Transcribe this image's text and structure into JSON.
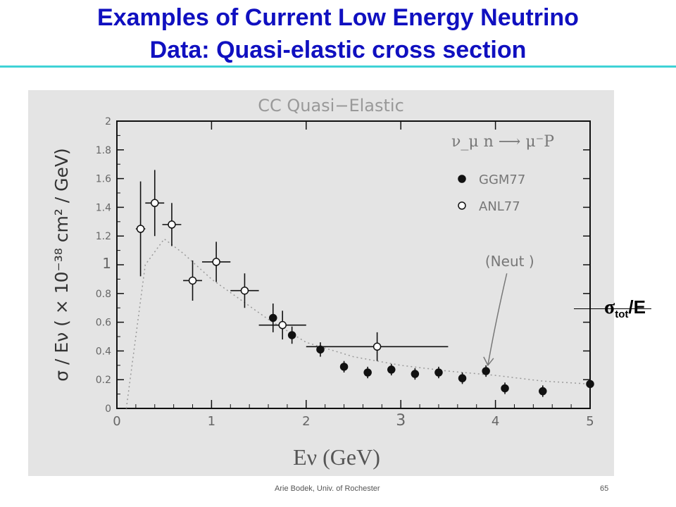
{
  "slide": {
    "title_line1": "Examples of Current Low Energy Neutrino",
    "title_line2": "Data: Quasi-elastic cross section",
    "footer_author": "Arie Bodek,  Univ. of Rochester",
    "footer_page": "65",
    "side_label_sigma": "σ",
    "side_label_sub": "tot",
    "side_label_rest": "/E"
  },
  "chart_data": {
    "type": "scatter",
    "title": "CC Quasi−Elastic",
    "reaction": "ν_μ n ⟶ μ⁻P",
    "xlabel": "Eν (GeV)",
    "ylabel": "σ / Eν ( × 10⁻³⁸ cm² / GeV)",
    "xlim": [
      0,
      5
    ],
    "ylim": [
      0,
      2
    ],
    "x_ticks": [
      0,
      1,
      2,
      3,
      4,
      5
    ],
    "y_ticks": [
      0,
      0.2,
      0.4,
      0.6,
      0.8,
      1,
      1.2,
      1.4,
      1.6,
      1.8,
      2
    ],
    "y_tick_labels": [
      "0",
      "0.2",
      "0.4",
      "0.6",
      "0.8",
      "1",
      "1.2",
      "1.4",
      "1.6",
      "1.8",
      "2"
    ],
    "grid": false,
    "legend_position": "top-right",
    "series": [
      {
        "name": "GGM77",
        "marker": "filled-circle",
        "points": [
          {
            "x": 1.65,
            "y": 0.63,
            "xerr": 0.0,
            "yerr": 0.1
          },
          {
            "x": 1.85,
            "y": 0.51,
            "xerr": 0.0,
            "yerr": 0.06
          },
          {
            "x": 2.15,
            "y": 0.41,
            "xerr": 0.0,
            "yerr": 0.05
          },
          {
            "x": 2.4,
            "y": 0.29,
            "xerr": 0.0,
            "yerr": 0.04
          },
          {
            "x": 2.65,
            "y": 0.25,
            "xerr": 0.0,
            "yerr": 0.04
          },
          {
            "x": 2.9,
            "y": 0.27,
            "xerr": 0.0,
            "yerr": 0.04
          },
          {
            "x": 3.15,
            "y": 0.24,
            "xerr": 0.0,
            "yerr": 0.04
          },
          {
            "x": 3.4,
            "y": 0.25,
            "xerr": 0.0,
            "yerr": 0.04
          },
          {
            "x": 3.65,
            "y": 0.21,
            "xerr": 0.0,
            "yerr": 0.04
          },
          {
            "x": 3.9,
            "y": 0.26,
            "xerr": 0.0,
            "yerr": 0.04
          },
          {
            "x": 4.1,
            "y": 0.14,
            "xerr": 0.0,
            "yerr": 0.04
          },
          {
            "x": 4.5,
            "y": 0.12,
            "xerr": 0.0,
            "yerr": 0.04
          },
          {
            "x": 5.0,
            "y": 0.17,
            "xerr": 0.0,
            "yerr": 0.04
          }
        ]
      },
      {
        "name": "ANL77",
        "marker": "open-circle",
        "points": [
          {
            "x": 0.25,
            "y": 1.25,
            "xerr": 0.05,
            "yerr": 0.33
          },
          {
            "x": 0.4,
            "y": 1.43,
            "xerr": 0.1,
            "yerr": 0.23
          },
          {
            "x": 0.58,
            "y": 1.28,
            "xerr": 0.1,
            "yerr": 0.15
          },
          {
            "x": 0.8,
            "y": 0.89,
            "xerr": 0.1,
            "yerr": 0.14
          },
          {
            "x": 1.05,
            "y": 1.02,
            "xerr": 0.15,
            "yerr": 0.14
          },
          {
            "x": 1.35,
            "y": 0.82,
            "xerr": 0.15,
            "yerr": 0.12
          },
          {
            "x": 1.75,
            "y": 0.58,
            "xerr": 0.25,
            "yerr": 0.1
          },
          {
            "x": 2.75,
            "y": 0.43,
            "xerr": 0.75,
            "yerr": 0.1
          }
        ]
      }
    ],
    "curve": {
      "label": "(Neut     )",
      "style": "dotted",
      "points": [
        {
          "x": 0.1,
          "y": 0.0
        },
        {
          "x": 0.3,
          "y": 1.0
        },
        {
          "x": 0.5,
          "y": 1.18
        },
        {
          "x": 0.7,
          "y": 1.08
        },
        {
          "x": 1.0,
          "y": 0.9
        },
        {
          "x": 1.3,
          "y": 0.76
        },
        {
          "x": 1.6,
          "y": 0.62
        },
        {
          "x": 2.0,
          "y": 0.46
        },
        {
          "x": 2.5,
          "y": 0.36
        },
        {
          "x": 3.0,
          "y": 0.3
        },
        {
          "x": 3.5,
          "y": 0.26
        },
        {
          "x": 4.0,
          "y": 0.23
        },
        {
          "x": 4.5,
          "y": 0.19
        },
        {
          "x": 5.0,
          "y": 0.17
        }
      ]
    },
    "colors": {
      "plot_background": "#e4e4e4",
      "ink": "#111111",
      "title_blue": "#1010c0",
      "rule_cyan": "#3fd2d6"
    }
  }
}
